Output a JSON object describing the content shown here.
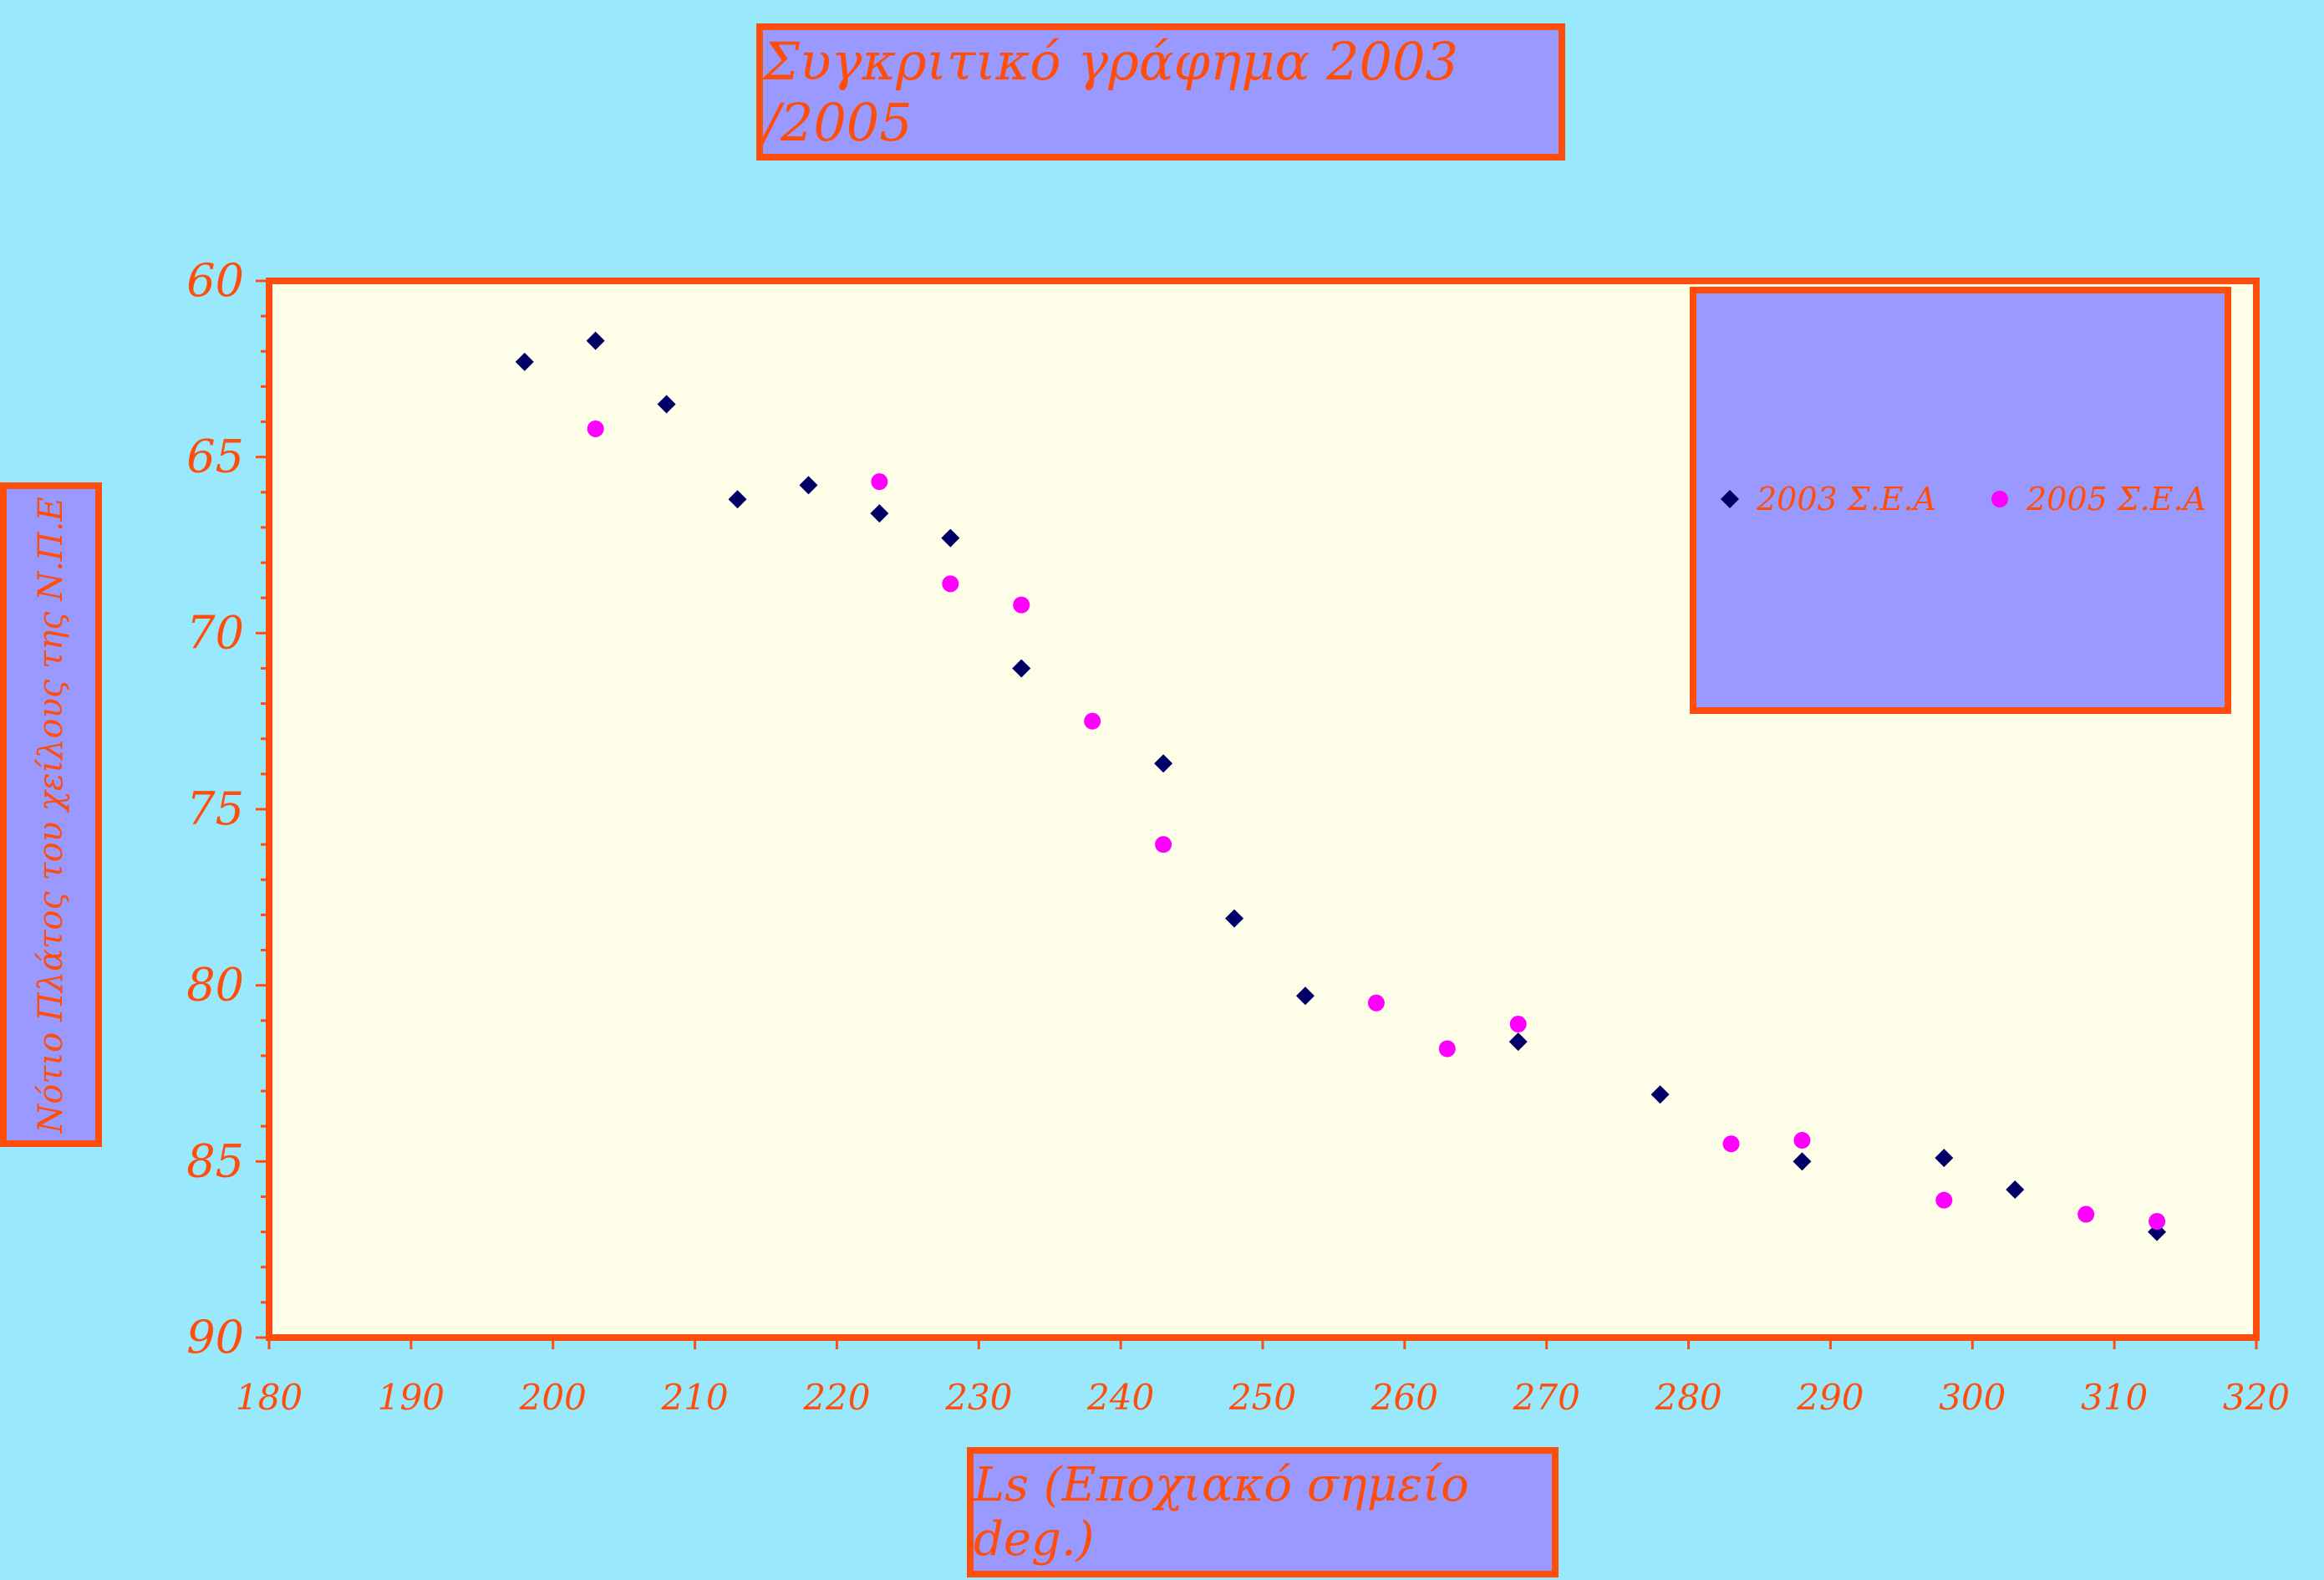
{
  "colors": {
    "background": "#99e8fc",
    "plot_background": "#fefde8",
    "border": "#ff4d0c",
    "box_fill": "#9999ff",
    "series_2003": "#000066",
    "series_2005": "#ff00ff"
  },
  "chart_data": {
    "type": "scatter",
    "title": "Συγκριτικό γράφημα 2003 /2005",
    "xlabel": "Ls (Εποχιακό σημείο deg.)",
    "ylabel": "Νότιο Πλάτος του χείλους της Ν.Π.Ε",
    "xlim": [
      180,
      320
    ],
    "ylim": [
      60,
      90
    ],
    "y_inverted": true,
    "x_ticks": [
      180,
      190,
      200,
      210,
      220,
      230,
      240,
      250,
      260,
      270,
      280,
      290,
      300,
      310,
      320
    ],
    "y_ticks": [
      60,
      65,
      70,
      75,
      80,
      85,
      90
    ],
    "grid": false,
    "legend_position": "top-right",
    "series": [
      {
        "name": "2003 Σ.Ε.Α",
        "marker": "diamond",
        "color": "#000066",
        "points": [
          [
            198,
            62.3
          ],
          [
            203,
            61.7
          ],
          [
            208,
            63.5
          ],
          [
            213,
            66.2
          ],
          [
            218,
            65.8
          ],
          [
            223,
            66.6
          ],
          [
            228,
            67.3
          ],
          [
            233,
            71.0
          ],
          [
            243,
            73.7
          ],
          [
            248,
            78.1
          ],
          [
            253,
            80.3
          ],
          [
            268,
            81.6
          ],
          [
            278,
            83.1
          ],
          [
            288,
            85.0
          ],
          [
            298,
            84.9
          ],
          [
            303,
            85.8
          ],
          [
            313,
            87.0
          ]
        ]
      },
      {
        "name": "2005 Σ.Ε.Α",
        "marker": "circle",
        "color": "#ff00ff",
        "points": [
          [
            203,
            64.2
          ],
          [
            223,
            65.7
          ],
          [
            228,
            68.6
          ],
          [
            233,
            69.2
          ],
          [
            238,
            72.5
          ],
          [
            243,
            76.0
          ],
          [
            258,
            80.5
          ],
          [
            263,
            81.8
          ],
          [
            268,
            81.1
          ],
          [
            283,
            84.5
          ],
          [
            288,
            84.4
          ],
          [
            298,
            86.1
          ],
          [
            308,
            86.5
          ],
          [
            313,
            86.7
          ]
        ]
      }
    ]
  }
}
